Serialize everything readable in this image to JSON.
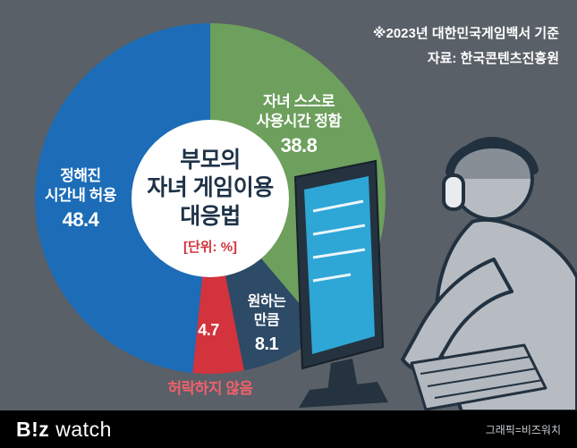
{
  "header": {
    "note_line1": "※2023년 대한민국게임백서 기준",
    "note_line2": "자료: 한국콘텐츠진흥원"
  },
  "center": {
    "title_line1": "부모의",
    "title_line2": "자녀 게임이용",
    "title_line3": "대응법",
    "unit": "[단위: %]"
  },
  "chart_data": {
    "type": "pie",
    "title": "부모의 자녀 게임이용 대응법",
    "unit": "%",
    "start_angle": "top",
    "direction": "clockwise",
    "hole_color": "#ffffff",
    "slices": [
      {
        "label": "자녀 스스로 사용시간 정함",
        "label_lines": [
          "자녀 스스로",
          "사용시간 정함"
        ],
        "value": 38.8,
        "color": "#6d9f5d"
      },
      {
        "label": "원하는 만큼",
        "label_lines": [
          "원하는",
          "만큼"
        ],
        "value": 8.1,
        "color": "#2d4a66"
      },
      {
        "label": "허락하지 않음",
        "label_lines": [],
        "value": 4.7,
        "color": "#d2333c"
      },
      {
        "label": "정해진 시간내 허용",
        "label_lines": [
          "정해진",
          "시간내 허용"
        ],
        "value": 48.4,
        "color": "#1c6cb7"
      }
    ]
  },
  "footer": {
    "logo_part1": "B!z",
    "logo_part2": "watch",
    "credit": "그래픽=비즈워치"
  },
  "colors": {
    "background": "#5a6067",
    "title_text": "#1e3247",
    "unit_text": "#d2343c",
    "outside_label": "#f0606c"
  }
}
